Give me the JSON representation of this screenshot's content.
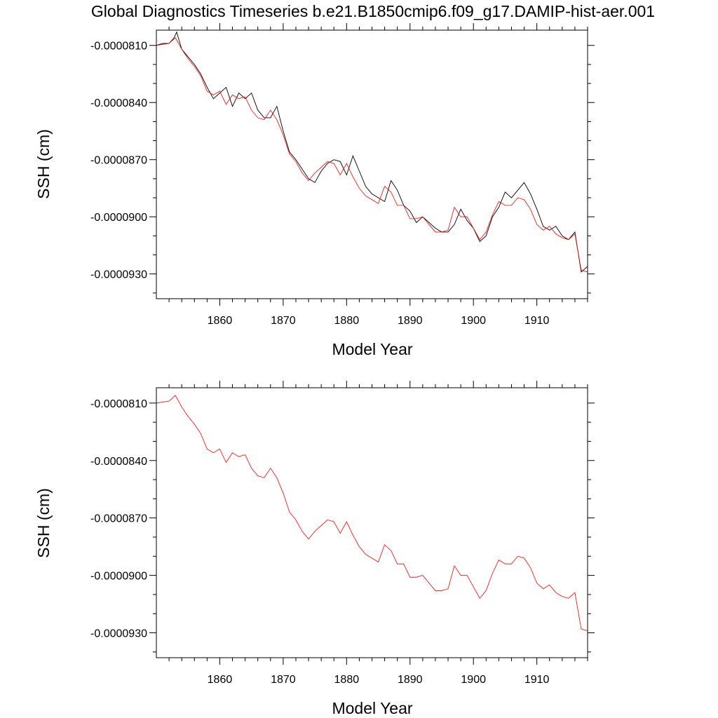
{
  "figure": {
    "title": "Global Diagnostics Timeseries b.e21.B1850cmip6.f09_g17.DAMIP-hist-aer.001"
  },
  "colors": {
    "annual": "#000000",
    "smoothed": "#ff0000"
  },
  "panels": [
    {
      "xlabel": "Model Year",
      "ylabel": "SSH (cm)",
      "xticks": [
        "1860",
        "1870",
        "1880",
        "1890",
        "1900",
        "1910"
      ],
      "yticks": [
        "-0.0000810",
        "-0.0000840",
        "-0.0000870",
        "-0.0000900",
        "-0.0000930"
      ]
    },
    {
      "xlabel": "Model Year",
      "ylabel": "SSH (cm)",
      "xticks": [
        "1860",
        "1870",
        "1880",
        "1890",
        "1900",
        "1910"
      ],
      "yticks": [
        "-0.0000810",
        "-0.0000840",
        "-0.0000870",
        "-0.0000900",
        "-0.0000930"
      ]
    }
  ],
  "chart_data": [
    {
      "type": "line",
      "title": "Global Diagnostics Timeseries b.e21.B1850cmip6.f09_g17.DAMIP-hist-aer.001",
      "xlabel": "Model Year",
      "ylabel": "SSH (cm)",
      "xlim": [
        1850,
        1918
      ],
      "ylim": [
        -9.43e-05,
        -8.02e-05
      ],
      "xticks": [
        1860,
        1870,
        1880,
        1890,
        1900,
        1910
      ],
      "yticks": [
        -8.1e-05,
        -8.4e-05,
        -8.7e-05,
        -9e-05,
        -9.3e-05
      ],
      "grid": false,
      "series": [
        {
          "color": "#000000",
          "style": "monthly (noisy)",
          "x": [
            1850,
            1851,
            1852,
            1852.8,
            1853.2,
            1854,
            1855,
            1856,
            1857,
            1858,
            1859,
            1860,
            1861,
            1862,
            1863,
            1864,
            1865,
            1866,
            1867,
            1868,
            1869,
            1870,
            1871,
            1872,
            1873,
            1874,
            1875,
            1876,
            1877,
            1878,
            1879,
            1880,
            1881,
            1882,
            1883,
            1884,
            1885,
            1886,
            1887,
            1888,
            1889,
            1890,
            1891,
            1892,
            1893,
            1894,
            1895,
            1896,
            1897,
            1898,
            1899,
            1900,
            1901,
            1902,
            1903,
            1904,
            1905,
            1906,
            1907,
            1908,
            1909,
            1910,
            1911,
            1912,
            1913,
            1914,
            1915,
            1916,
            1917,
            1918
          ],
          "y": [
            -8.1e-05,
            -8.09e-05,
            -8.09e-05,
            -8.06e-05,
            -8.03e-05,
            -8.12e-05,
            -8.16e-05,
            -8.2e-05,
            -8.25e-05,
            -8.32e-05,
            -8.38e-05,
            -8.35e-05,
            -8.32e-05,
            -8.42e-05,
            -8.35e-05,
            -8.38e-05,
            -8.35e-05,
            -8.44e-05,
            -8.48e-05,
            -8.48e-05,
            -8.42e-05,
            -8.55e-05,
            -8.66e-05,
            -8.7e-05,
            -8.75e-05,
            -8.8e-05,
            -8.82e-05,
            -8.76e-05,
            -8.72e-05,
            -8.7e-05,
            -8.71e-05,
            -8.78e-05,
            -8.68e-05,
            -8.76e-05,
            -8.84e-05,
            -8.88e-05,
            -8.9e-05,
            -8.92e-05,
            -8.81e-05,
            -8.86e-05,
            -8.94e-05,
            -8.97e-05,
            -9.03e-05,
            -9e-05,
            -9.03e-05,
            -9.06e-05,
            -9.08e-05,
            -9.08e-05,
            -9.04e-05,
            -8.96e-05,
            -9.02e-05,
            -9.06e-05,
            -9.13e-05,
            -9.1e-05,
            -9e-05,
            -8.95e-05,
            -8.87e-05,
            -8.9e-05,
            -8.86e-05,
            -8.82e-05,
            -8.88e-05,
            -8.96e-05,
            -9.05e-05,
            -9.07e-05,
            -9.05e-05,
            -9.1e-05,
            -9.12e-05,
            -9.08e-05,
            -9.29e-05,
            -9.26e-05
          ]
        },
        {
          "color": "#ff0000",
          "style": "annual mean",
          "x": [
            1850,
            1852,
            1853,
            1854,
            1855,
            1856,
            1857,
            1858,
            1859,
            1860,
            1861,
            1862,
            1863,
            1864,
            1865,
            1866,
            1867,
            1868,
            1869,
            1870,
            1871,
            1872,
            1873,
            1874,
            1875,
            1876,
            1877,
            1878,
            1879,
            1880,
            1881,
            1882,
            1883,
            1884,
            1885,
            1886,
            1887,
            1888,
            1889,
            1890,
            1891,
            1892,
            1893,
            1894,
            1895,
            1896,
            1897,
            1898,
            1899,
            1900,
            1901,
            1902,
            1903,
            1904,
            1905,
            1906,
            1907,
            1908,
            1909,
            1910,
            1911,
            1912,
            1913,
            1914,
            1915,
            1916,
            1917,
            1918
          ],
          "y": [
            -8.1e-05,
            -8.09e-05,
            -8.06e-05,
            -8.12e-05,
            -8.17e-05,
            -8.21e-05,
            -8.26e-05,
            -8.34e-05,
            -8.36e-05,
            -8.34e-05,
            -8.41e-05,
            -8.36e-05,
            -8.38e-05,
            -8.37e-05,
            -8.44e-05,
            -8.48e-05,
            -8.49e-05,
            -8.44e-05,
            -8.49e-05,
            -8.57e-05,
            -8.67e-05,
            -8.71e-05,
            -8.77e-05,
            -8.81e-05,
            -8.77e-05,
            -8.74e-05,
            -8.71e-05,
            -8.72e-05,
            -8.78e-05,
            -8.72e-05,
            -8.79e-05,
            -8.85e-05,
            -8.89e-05,
            -8.91e-05,
            -8.93e-05,
            -8.84e-05,
            -8.87e-05,
            -8.94e-05,
            -8.94e-05,
            -9.01e-05,
            -9.01e-05,
            -9e-05,
            -9.04e-05,
            -9.08e-05,
            -9.08e-05,
            -9.07e-05,
            -8.95e-05,
            -9e-05,
            -9e-05,
            -9.06e-05,
            -9.12e-05,
            -9.08e-05,
            -8.99e-05,
            -8.92e-05,
            -8.94e-05,
            -8.94e-05,
            -8.9e-05,
            -8.91e-05,
            -8.96e-05,
            -9.04e-05,
            -9.07e-05,
            -9.05e-05,
            -9.09e-05,
            -9.11e-05,
            -9.12e-05,
            -9.09e-05,
            -9.28e-05,
            -9.29e-05
          ]
        }
      ]
    },
    {
      "type": "line",
      "xlabel": "Model Year",
      "ylabel": "SSH (cm)",
      "xlim": [
        1850,
        1918
      ],
      "ylim": [
        -9.43e-05,
        -8.02e-05
      ],
      "xticks": [
        1860,
        1870,
        1880,
        1890,
        1900,
        1910
      ],
      "yticks": [
        -8.1e-05,
        -8.4e-05,
        -8.7e-05,
        -9e-05,
        -9.3e-05
      ],
      "grid": false,
      "series": [
        {
          "color": "#ff0000",
          "style": "annual mean",
          "x": [
            1850,
            1852,
            1853,
            1854,
            1855,
            1856,
            1857,
            1858,
            1859,
            1860,
            1861,
            1862,
            1863,
            1864,
            1865,
            1866,
            1867,
            1868,
            1869,
            1870,
            1871,
            1872,
            1873,
            1874,
            1875,
            1876,
            1877,
            1878,
            1879,
            1880,
            1881,
            1882,
            1883,
            1884,
            1885,
            1886,
            1887,
            1888,
            1889,
            1890,
            1891,
            1892,
            1893,
            1894,
            1895,
            1896,
            1897,
            1898,
            1899,
            1900,
            1901,
            1902,
            1903,
            1904,
            1905,
            1906,
            1907,
            1908,
            1909,
            1910,
            1911,
            1912,
            1913,
            1914,
            1915,
            1916,
            1917,
            1918
          ],
          "y": [
            -8.1e-05,
            -8.09e-05,
            -8.06e-05,
            -8.12e-05,
            -8.17e-05,
            -8.21e-05,
            -8.26e-05,
            -8.34e-05,
            -8.36e-05,
            -8.34e-05,
            -8.41e-05,
            -8.36e-05,
            -8.38e-05,
            -8.37e-05,
            -8.44e-05,
            -8.48e-05,
            -8.49e-05,
            -8.44e-05,
            -8.49e-05,
            -8.57e-05,
            -8.67e-05,
            -8.71e-05,
            -8.77e-05,
            -8.81e-05,
            -8.77e-05,
            -8.74e-05,
            -8.71e-05,
            -8.72e-05,
            -8.78e-05,
            -8.72e-05,
            -8.79e-05,
            -8.85e-05,
            -8.89e-05,
            -8.91e-05,
            -8.93e-05,
            -8.84e-05,
            -8.87e-05,
            -8.94e-05,
            -8.94e-05,
            -9.01e-05,
            -9.01e-05,
            -9e-05,
            -9.04e-05,
            -9.08e-05,
            -9.08e-05,
            -9.07e-05,
            -8.95e-05,
            -9e-05,
            -9e-05,
            -9.06e-05,
            -9.12e-05,
            -9.08e-05,
            -8.99e-05,
            -8.92e-05,
            -8.94e-05,
            -8.94e-05,
            -8.9e-05,
            -8.91e-05,
            -8.96e-05,
            -9.04e-05,
            -9.07e-05,
            -9.05e-05,
            -9.09e-05,
            -9.11e-05,
            -9.12e-05,
            -9.09e-05,
            -9.28e-05,
            -9.29e-05
          ]
        }
      ]
    }
  ]
}
